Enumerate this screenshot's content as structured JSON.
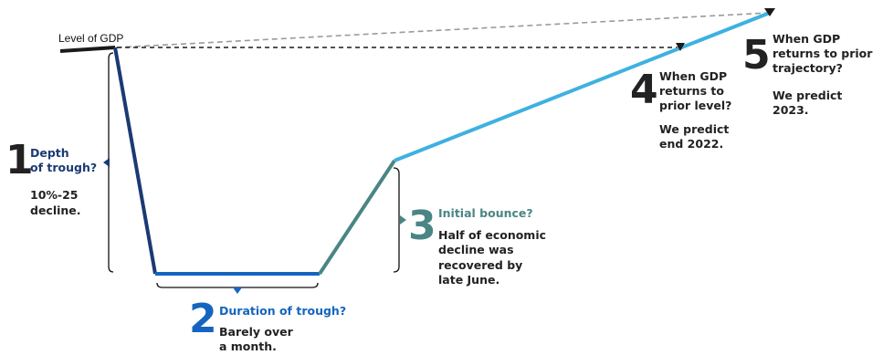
{
  "start_label": "Level of GDP",
  "colors": {
    "prior_level": "#1a1a1a",
    "drop": "#1b3a73",
    "trough": "#1565c0",
    "bounce": "#4a8585",
    "recovery": "#3eb1e0",
    "trajectory": "#9a9a9a",
    "bracket": "#111111",
    "text": "#222222"
  },
  "callouts": [
    {
      "number": "1",
      "question": [
        "Depth",
        "of trough?"
      ],
      "answer": [
        "10%-25",
        "decline."
      ],
      "color": "#1b3a73"
    },
    {
      "number": "2",
      "question": [
        "Duration of trough?"
      ],
      "answer": [
        "Barely over",
        "a month."
      ],
      "color": "#1565c0"
    },
    {
      "number": "3",
      "question": [
        "Initial bounce?"
      ],
      "answer": [
        "Half of economic",
        "decline was",
        "recovered by",
        "late June."
      ],
      "color": "#4a8585"
    },
    {
      "number": "4",
      "question": [
        "When GDP",
        "returns to",
        "prior level?"
      ],
      "answer": [
        "We predict",
        "end 2022."
      ],
      "color": "#222222"
    },
    {
      "number": "5",
      "question": [
        "When GDP",
        "returns to prior",
        "trajectory?"
      ],
      "answer": [
        "We predict",
        "2023."
      ],
      "color": "#222222"
    }
  ]
}
